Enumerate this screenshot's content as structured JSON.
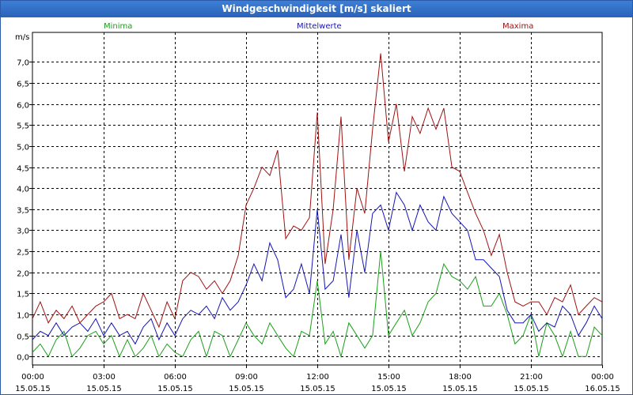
{
  "window": {
    "title": "Windgeschwindigkeit [m/s] skaliert"
  },
  "chart_data": {
    "type": "line",
    "title": "Windgeschwindigkeit [m/s] skaliert",
    "ylabel": "m/s",
    "ylim": [
      -0.2,
      7.7
    ],
    "yticks": [
      {
        "v": 0.0,
        "label": "0,0"
      },
      {
        "v": 0.5,
        "label": "0,5"
      },
      {
        "v": 1.0,
        "label": "1,0"
      },
      {
        "v": 1.5,
        "label": "1,5"
      },
      {
        "v": 2.0,
        "label": "2,0"
      },
      {
        "v": 2.5,
        "label": "2,5"
      },
      {
        "v": 3.0,
        "label": "3,0"
      },
      {
        "v": 3.5,
        "label": "3,5"
      },
      {
        "v": 4.0,
        "label": "4,0"
      },
      {
        "v": 4.5,
        "label": "4,5"
      },
      {
        "v": 5.0,
        "label": "5,0"
      },
      {
        "v": 5.5,
        "label": "5,5"
      },
      {
        "v": 6.0,
        "label": "6,0"
      },
      {
        "v": 6.5,
        "label": "6,5"
      },
      {
        "v": 7.0,
        "label": "7,0"
      }
    ],
    "xlim": [
      0,
      24
    ],
    "xticks": [
      {
        "h": 0,
        "time": "00:00",
        "date": "15.05.15"
      },
      {
        "h": 3,
        "time": "03:00",
        "date": "15.05.15"
      },
      {
        "h": 6,
        "time": "06:00",
        "date": "15.05.15"
      },
      {
        "h": 9,
        "time": "09:00",
        "date": "15.05.15"
      },
      {
        "h": 12,
        "time": "12:00",
        "date": "15.05.15"
      },
      {
        "h": 15,
        "time": "15:00",
        "date": "15.05.15"
      },
      {
        "h": 18,
        "time": "18:00",
        "date": "15.05.15"
      },
      {
        "h": 21,
        "time": "21:00",
        "date": "15.05.15"
      },
      {
        "h": 24,
        "time": "00:00",
        "date": "16.05.15"
      }
    ],
    "series": [
      {
        "name": "Minima",
        "color": "#1aa01a",
        "x": [
          0,
          0.33,
          0.67,
          1,
          1.33,
          1.67,
          2,
          2.33,
          2.67,
          3,
          3.33,
          3.67,
          4,
          4.33,
          4.67,
          5,
          5.33,
          5.67,
          6,
          6.33,
          6.67,
          7,
          7.33,
          7.67,
          8,
          8.33,
          8.67,
          9,
          9.33,
          9.67,
          10,
          10.33,
          10.67,
          11,
          11.33,
          11.67,
          12,
          12.33,
          12.67,
          13,
          13.33,
          13.67,
          14,
          14.33,
          14.67,
          15,
          15.33,
          15.67,
          16,
          16.33,
          16.67,
          17,
          17.33,
          17.67,
          18,
          18.33,
          18.67,
          19,
          19.33,
          19.67,
          20,
          20.33,
          20.67,
          21,
          21.33,
          21.67,
          22,
          22.33,
          22.67,
          23,
          23.33,
          23.67,
          24
        ],
        "values": [
          0.1,
          0.3,
          0.0,
          0.4,
          0.6,
          0.0,
          0.2,
          0.5,
          0.6,
          0.3,
          0.5,
          0.0,
          0.4,
          0.0,
          0.2,
          0.5,
          0.0,
          0.3,
          0.1,
          0.0,
          0.4,
          0.6,
          0.0,
          0.6,
          0.5,
          0.0,
          0.4,
          0.8,
          0.5,
          0.3,
          0.8,
          0.5,
          0.2,
          0.0,
          0.6,
          0.5,
          1.8,
          0.3,
          0.6,
          0.0,
          0.8,
          0.5,
          0.2,
          0.5,
          2.5,
          0.5,
          0.8,
          1.1,
          0.5,
          0.8,
          1.3,
          1.5,
          2.2,
          1.9,
          1.8,
          1.6,
          1.9,
          1.2,
          1.2,
          1.5,
          1.0,
          0.3,
          0.5,
          1.0,
          0.0,
          0.8,
          0.5,
          0.0,
          0.6,
          0.0,
          0.0,
          0.7,
          0.5
        ]
      },
      {
        "name": "Mittelwerte",
        "color": "#1515b5",
        "x": [
          0,
          0.33,
          0.67,
          1,
          1.33,
          1.67,
          2,
          2.33,
          2.67,
          3,
          3.33,
          3.67,
          4,
          4.33,
          4.67,
          5,
          5.33,
          5.67,
          6,
          6.33,
          6.67,
          7,
          7.33,
          7.67,
          8,
          8.33,
          8.67,
          9,
          9.33,
          9.67,
          10,
          10.33,
          10.67,
          11,
          11.33,
          11.67,
          12,
          12.33,
          12.67,
          13,
          13.33,
          13.67,
          14,
          14.33,
          14.67,
          15,
          15.33,
          15.67,
          16,
          16.33,
          16.67,
          17,
          17.33,
          17.67,
          18,
          18.33,
          18.67,
          19,
          19.33,
          19.67,
          20,
          20.33,
          20.67,
          21,
          21.33,
          21.67,
          22,
          22.33,
          22.67,
          23,
          23.33,
          23.67,
          24
        ],
        "values": [
          0.4,
          0.6,
          0.5,
          0.8,
          0.5,
          0.7,
          0.8,
          0.6,
          0.9,
          0.5,
          0.8,
          0.5,
          0.6,
          0.3,
          0.7,
          0.9,
          0.4,
          0.8,
          0.5,
          0.9,
          1.1,
          1.0,
          1.2,
          0.9,
          1.4,
          1.1,
          1.3,
          1.7,
          2.2,
          1.8,
          2.7,
          2.3,
          1.4,
          1.6,
          2.2,
          1.5,
          3.5,
          1.6,
          1.8,
          2.9,
          1.4,
          3.0,
          2.0,
          3.4,
          3.6,
          3.0,
          3.9,
          3.6,
          3.0,
          3.6,
          3.2,
          3.0,
          3.8,
          3.4,
          3.2,
          3.0,
          2.3,
          2.3,
          2.1,
          1.9,
          1.1,
          0.8,
          0.8,
          1.0,
          0.6,
          0.8,
          0.7,
          1.2,
          1.0,
          0.5,
          0.8,
          1.2,
          0.9
        ]
      },
      {
        "name": "Maxima",
        "color": "#a01212",
        "x": [
          0,
          0.33,
          0.67,
          1,
          1.33,
          1.67,
          2,
          2.33,
          2.67,
          3,
          3.33,
          3.67,
          4,
          4.33,
          4.67,
          5,
          5.33,
          5.67,
          6,
          6.33,
          6.67,
          7,
          7.33,
          7.67,
          8,
          8.33,
          8.67,
          9,
          9.33,
          9.67,
          10,
          10.33,
          10.67,
          11,
          11.33,
          11.67,
          12,
          12.33,
          12.67,
          13,
          13.33,
          13.67,
          14,
          14.33,
          14.67,
          15,
          15.33,
          15.67,
          16,
          16.33,
          16.67,
          17,
          17.33,
          17.67,
          18,
          18.33,
          18.67,
          19,
          19.33,
          19.67,
          20,
          20.33,
          20.67,
          21,
          21.33,
          21.67,
          22,
          22.33,
          22.67,
          23,
          23.33,
          23.67,
          24
        ],
        "values": [
          0.9,
          1.3,
          0.8,
          1.1,
          0.9,
          1.2,
          0.8,
          1.0,
          1.2,
          1.3,
          1.5,
          0.9,
          1.0,
          0.9,
          1.5,
          1.1,
          0.7,
          1.3,
          0.9,
          1.8,
          2.0,
          1.9,
          1.6,
          1.8,
          1.5,
          1.8,
          2.4,
          3.6,
          4.0,
          4.5,
          4.3,
          4.9,
          2.8,
          3.1,
          3.0,
          3.3,
          5.8,
          2.2,
          3.5,
          5.7,
          2.3,
          4.0,
          3.4,
          5.4,
          7.2,
          5.1,
          6.0,
          4.4,
          5.7,
          5.3,
          5.9,
          5.4,
          5.9,
          4.5,
          4.4,
          3.9,
          3.4,
          3.0,
          2.4,
          2.9,
          2.0,
          1.3,
          1.2,
          1.3,
          1.3,
          1.0,
          1.4,
          1.3,
          1.7,
          1.0,
          1.2,
          1.4,
          1.3
        ]
      }
    ]
  }
}
